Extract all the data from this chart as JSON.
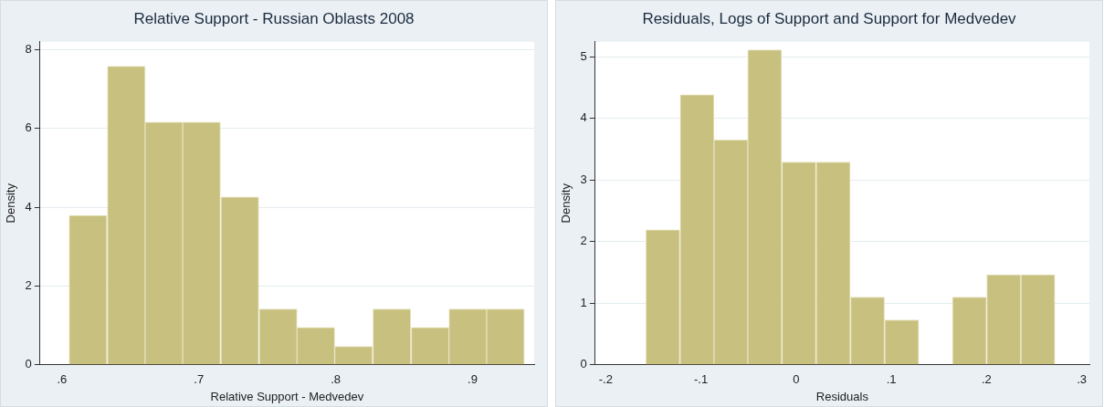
{
  "chart_data": [
    {
      "type": "histogram",
      "title": "Relative Support - Russian Oblasts 2008",
      "xlabel": "Relative Support - Medvedev",
      "ylabel": "Density",
      "bins": [
        0.605,
        0.633,
        0.661,
        0.688,
        0.716,
        0.744,
        0.772,
        0.799,
        0.827,
        0.855,
        0.883,
        0.91,
        0.938
      ],
      "values": [
        3.79,
        7.58,
        6.16,
        6.16,
        4.26,
        1.42,
        0.95,
        0.47,
        1.42,
        0.95,
        1.42,
        1.42
      ],
      "color": "#c8c07f",
      "xlim": [
        0.584,
        0.945
      ],
      "ylim": [
        0,
        8.2
      ],
      "xticks": [
        {
          "value": 0.6,
          "label": ".6"
        },
        {
          "value": 0.7,
          "label": ".7"
        },
        {
          "value": 0.8,
          "label": ".8"
        },
        {
          "value": 0.9,
          "label": ".9"
        }
      ],
      "yticks": [
        0,
        2,
        4,
        6,
        8
      ],
      "grid": "y",
      "legend": false
    },
    {
      "type": "histogram",
      "title": "Residuals, Logs of Support and Support for Medvedev",
      "xlabel": "Residuals",
      "ylabel": "Density",
      "bins": [
        -0.158,
        -0.122,
        -0.086,
        -0.051,
        -0.015,
        0.021,
        0.057,
        0.093,
        0.129,
        0.164,
        0.2,
        0.236,
        0.272
      ],
      "values": [
        2.19,
        4.38,
        3.65,
        5.11,
        3.29,
        3.29,
        1.1,
        0.73,
        0,
        1.1,
        1.46,
        1.46
      ],
      "color": "#c8c07f",
      "xlim": [
        -0.211,
        0.308
      ],
      "ylim": [
        0,
        5.24
      ],
      "xticks": [
        {
          "value": -0.2,
          "label": "-.2"
        },
        {
          "value": -0.1,
          "label": "-.1"
        },
        0,
        {
          "value": 0.1,
          "label": ".1"
        },
        {
          "value": 0.2,
          "label": ".2"
        },
        {
          "value": 0.3,
          "label": ".3"
        }
      ],
      "yticks": [
        0,
        1,
        2,
        3,
        4,
        5
      ],
      "grid": "y",
      "legend": false
    }
  ]
}
